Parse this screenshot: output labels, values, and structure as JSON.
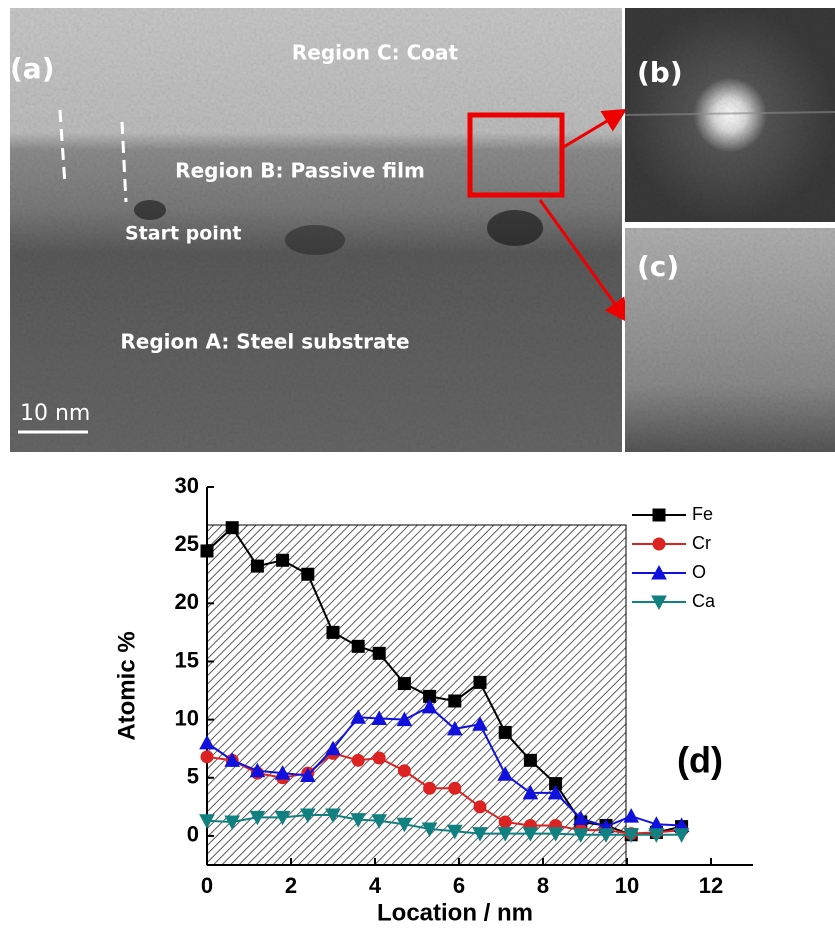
{
  "micrographs": {
    "panel_a": "(a)",
    "panel_b": "(b)",
    "panel_c": "(c)",
    "region_c": "Region C: Coat",
    "region_b": "Region B: Passive film",
    "start_point": "Start point",
    "region_a": "Region A: Steel substrate",
    "scale_bar": "10 nm"
  },
  "chart_data": {
    "type": "line",
    "annotation": "(d)",
    "x_label": "Location / nm",
    "y_label": "Atomic %",
    "x": [
      0,
      0.6,
      1.2,
      1.8,
      2.4,
      3.0,
      3.6,
      4.1,
      4.7,
      5.3,
      5.9,
      6.5,
      7.1,
      7.7,
      8.3,
      8.9,
      9.5,
      10.1,
      10.7,
      11.3
    ],
    "series": [
      {
        "name": "Fe",
        "color": "#000000",
        "marker": "square",
        "values": [
          24.5,
          26.5,
          23.2,
          23.7,
          22.5,
          17.5,
          16.3,
          15.7,
          13.1,
          12.0,
          11.6,
          13.2,
          8.9,
          6.5,
          4.5,
          1.2,
          0.9,
          0.1,
          0.3,
          0.8
        ]
      },
      {
        "name": "Cr",
        "color": "#dd2222",
        "marker": "circle",
        "values": [
          6.8,
          6.5,
          5.4,
          5.0,
          5.4,
          7.1,
          6.5,
          6.7,
          5.6,
          4.1,
          4.1,
          2.5,
          1.2,
          0.9,
          0.9,
          0.5,
          0.5,
          0.2,
          0.3,
          0.5
        ]
      },
      {
        "name": "O",
        "color": "#1111dd",
        "marker": "triangle-up",
        "values": [
          8.0,
          6.5,
          5.6,
          5.4,
          5.2,
          7.5,
          10.2,
          10.1,
          10.0,
          11.1,
          9.2,
          9.6,
          5.3,
          3.7,
          3.7,
          1.5,
          0.8,
          1.7,
          1.0,
          0.9
        ]
      },
      {
        "name": "Ca",
        "color": "#118080",
        "marker": "triangle-down",
        "values": [
          1.3,
          1.2,
          1.6,
          1.6,
          1.8,
          1.8,
          1.4,
          1.3,
          1.0,
          0.6,
          0.4,
          0.2,
          0.2,
          0.2,
          0.2,
          0.1,
          0.1,
          0.1,
          0.1,
          0.1
        ]
      }
    ],
    "xlim": [
      0,
      13
    ],
    "xticks": [
      0,
      2,
      4,
      6,
      8,
      10,
      12
    ],
    "ylim": [
      -2.5,
      30
    ],
    "yticks": [
      0,
      5,
      10,
      15,
      20,
      25,
      30
    ],
    "grid": false,
    "legend": "outside-right"
  }
}
